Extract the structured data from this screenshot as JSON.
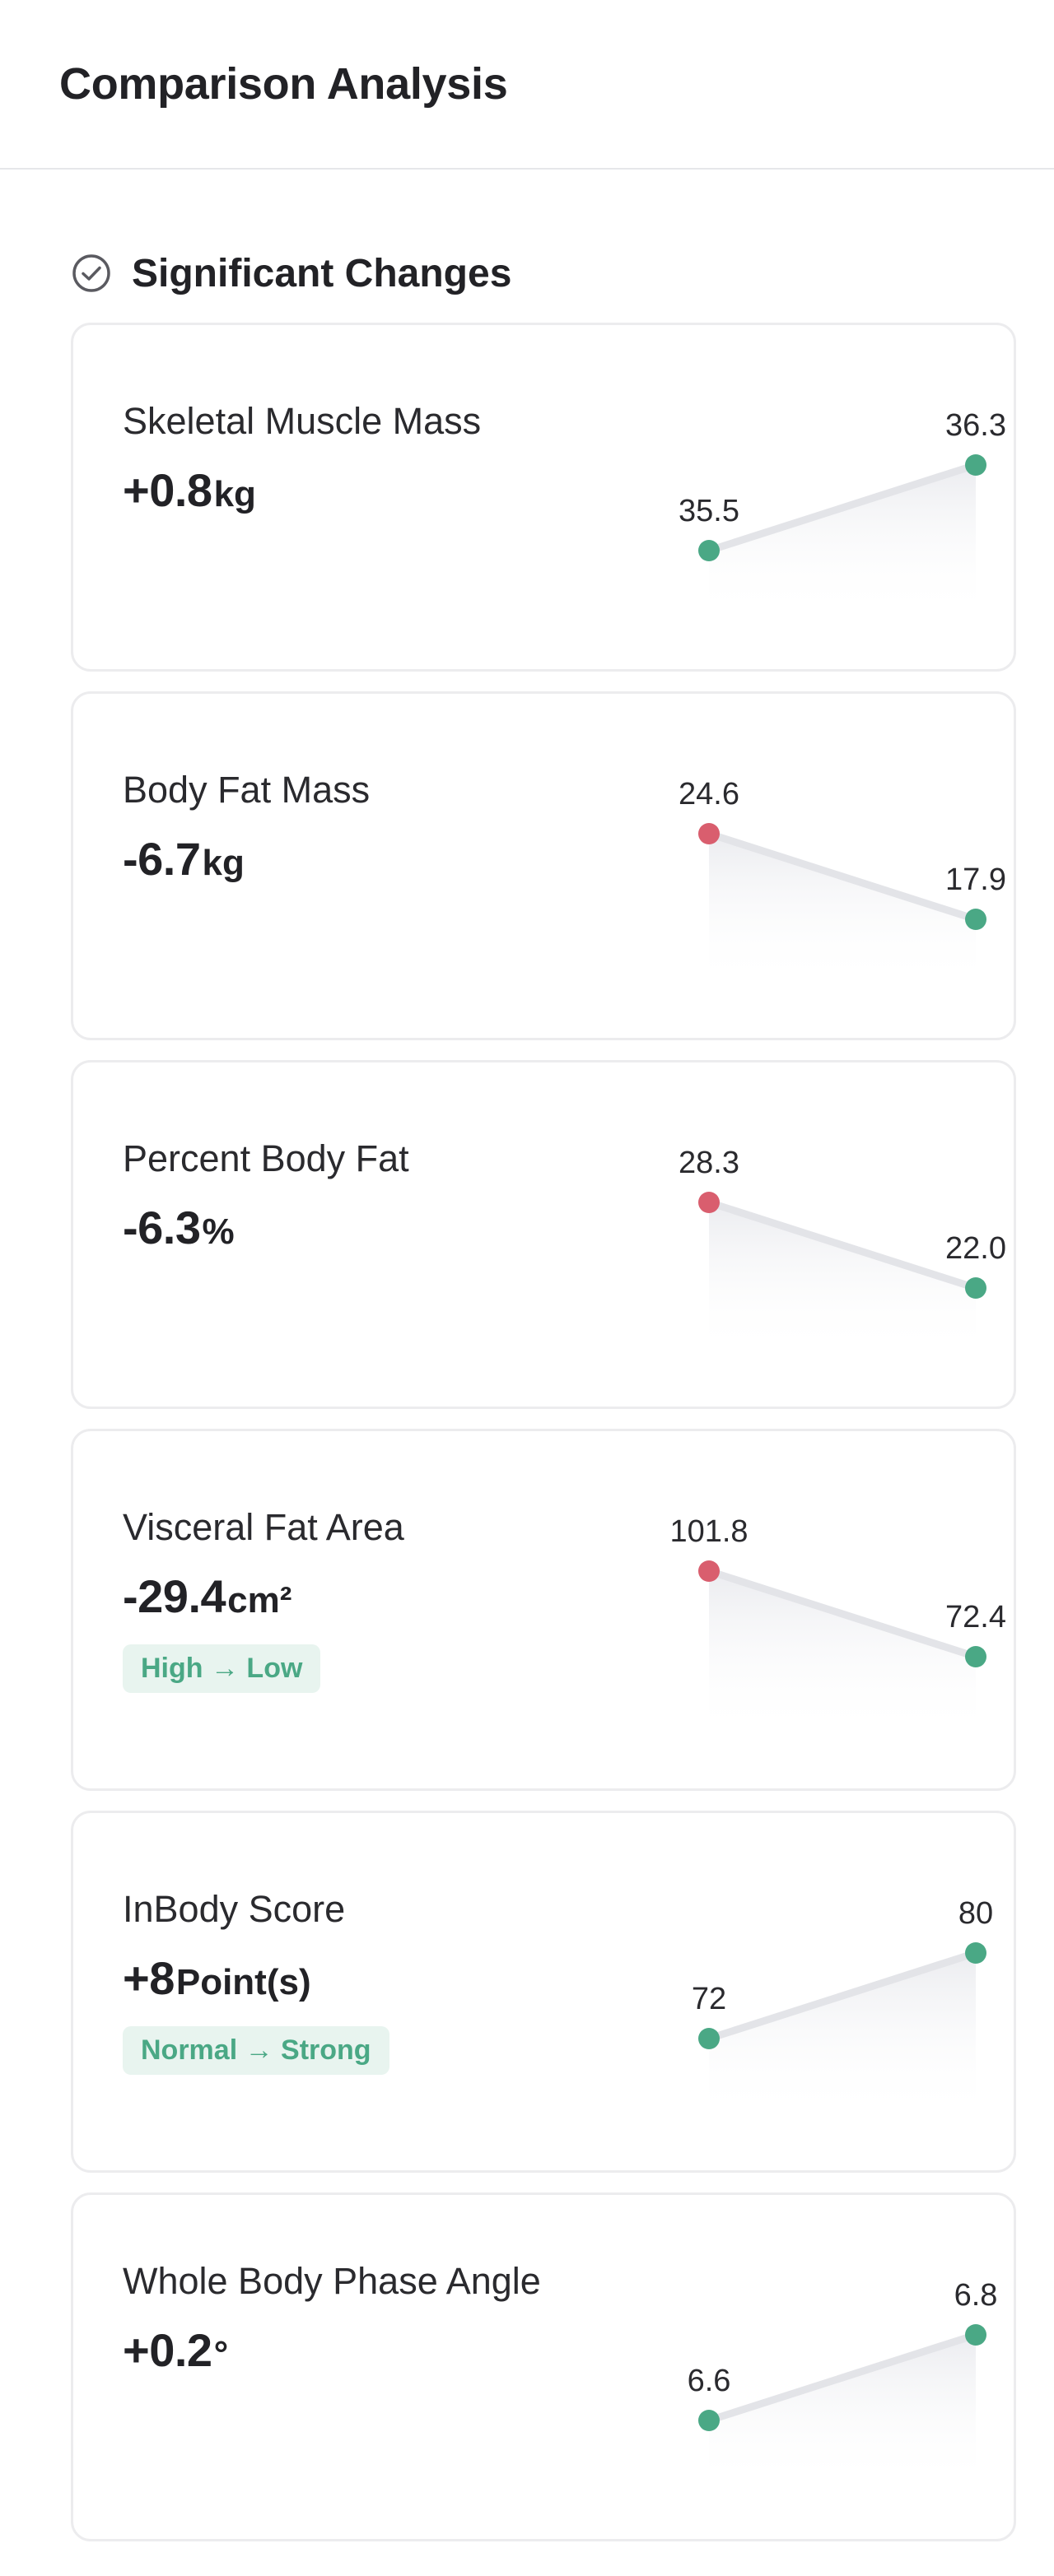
{
  "header": {
    "title": "Comparison Analysis"
  },
  "section": {
    "title": "Significant Changes",
    "icon": "check-circle-icon"
  },
  "colors": {
    "increase": "#4aa885",
    "decrease": "#d95e6e",
    "line": "#e3e4e8",
    "badge_bg": "#e8f4ef",
    "badge_text": "#4aa885"
  },
  "metrics": [
    {
      "name": "Skeletal Muscle Mass",
      "delta": "+0.8",
      "unit": "kg",
      "before": "35.5",
      "after": "36.3",
      "badge": ""
    },
    {
      "name": "Body Fat Mass",
      "delta": "-6.7",
      "unit": "kg",
      "before": "24.6",
      "after": "17.9",
      "badge": ""
    },
    {
      "name": "Percent Body Fat",
      "delta": "-6.3",
      "unit": "%",
      "before": "28.3",
      "after": "22.0",
      "badge": ""
    },
    {
      "name": "Visceral Fat Area",
      "delta": "-29.4",
      "unit": "cm²",
      "before": "101.8",
      "after": "72.4",
      "badge": "High → Low"
    },
    {
      "name": "InBody Score",
      "delta": "+8",
      "unit": "Point(s)",
      "before": "72",
      "after": "80",
      "badge": "Normal → Strong"
    },
    {
      "name": "Whole Body Phase Angle",
      "delta": "+0.2",
      "unit": "°",
      "before": "6.6",
      "after": "6.8",
      "badge": ""
    }
  ]
}
